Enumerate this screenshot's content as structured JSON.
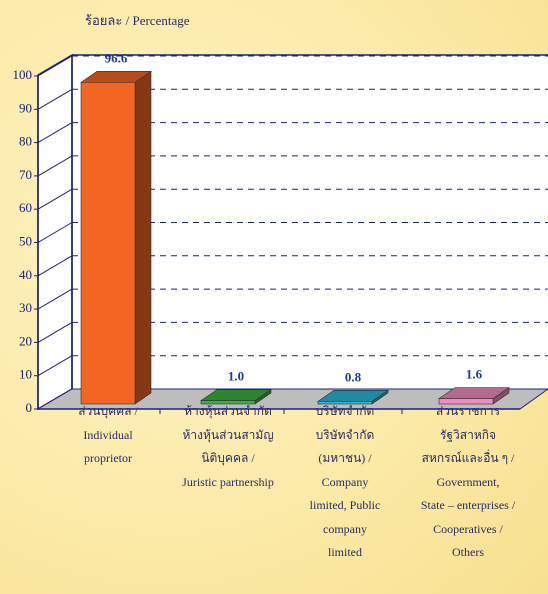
{
  "chart_data": {
    "type": "bar3d",
    "title": "ร้อยละ / Percentage",
    "categories": [
      "ส่วนบุคคล /\nIndividual\nproprietor",
      "ห้างหุ้นส่วนจำกัด\nห้างหุ้นส่วนสามัญ\nนิติบุคคล /\nJuristic partnership",
      "บริษัทจำกัด\nบริษัทจำกัด\n(มหาชน) /\nCompany\nlimited, Public\ncompany\nlimited",
      "ส่วนราชการ\nรัฐวิสาหกิจ\nสหกรณ์และอื่น ๆ /\nGovernment,\nState – enterprises /\nCooperatives /\nOthers"
    ],
    "values": [
      96.6,
      1.0,
      0.8,
      1.6
    ],
    "value_labels": [
      "96.6",
      "1.0",
      "0.8",
      "1.6"
    ],
    "colors": [
      "#f26522",
      "#3cb043",
      "#2ab8d8",
      "#f08cc0"
    ],
    "ylim": [
      0,
      100
    ],
    "yticks": [
      0,
      10,
      20,
      30,
      40,
      50,
      60,
      70,
      80,
      90,
      100
    ],
    "grid": true
  }
}
